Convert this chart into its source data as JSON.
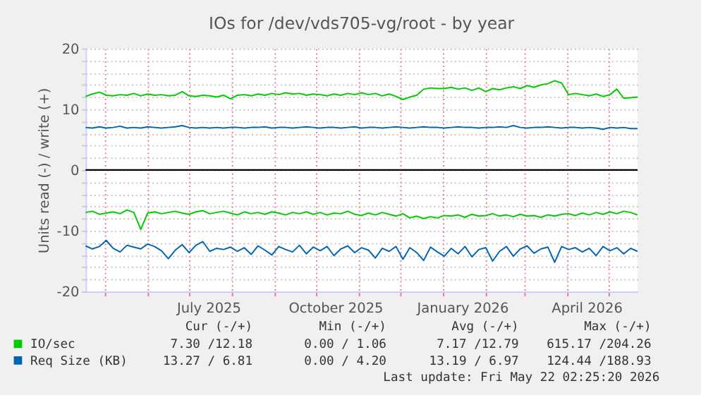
{
  "chart_data": {
    "type": "line",
    "title": "IOs for /dev/vds705-vg/root - by year",
    "ylabel": "Units read (-) / write (+)",
    "x": [
      "2025-04-17",
      "2025-04-22",
      "2025-04-27",
      "2025-05-02",
      "2025-05-07",
      "2025-05-12",
      "2025-05-17",
      "2025-05-22",
      "2025-05-27",
      "2025-06-01",
      "2025-06-06",
      "2025-06-11",
      "2025-06-16",
      "2025-06-21",
      "2025-06-26",
      "2025-07-01",
      "2025-07-06",
      "2025-07-11",
      "2025-07-16",
      "2025-07-21",
      "2025-07-26",
      "2025-07-31",
      "2025-08-05",
      "2025-08-10",
      "2025-08-15",
      "2025-08-20",
      "2025-08-25",
      "2025-08-30",
      "2025-09-04",
      "2025-09-09",
      "2025-09-14",
      "2025-09-19",
      "2025-09-24",
      "2025-09-29",
      "2025-10-04",
      "2025-10-09",
      "2025-10-14",
      "2025-10-19",
      "2025-10-24",
      "2025-10-29",
      "2025-11-03",
      "2025-11-08",
      "2025-11-13",
      "2025-11-18",
      "2025-11-23",
      "2025-11-28",
      "2025-12-03",
      "2025-12-08",
      "2025-12-13",
      "2025-12-18",
      "2025-12-23",
      "2025-12-28",
      "2026-01-02",
      "2026-01-07",
      "2026-01-12",
      "2026-01-17",
      "2026-01-22",
      "2026-01-27",
      "2026-02-01",
      "2026-02-06",
      "2026-02-11",
      "2026-02-16",
      "2026-02-21",
      "2026-02-26",
      "2026-03-03",
      "2026-03-08",
      "2026-03-13",
      "2026-03-18",
      "2026-03-23",
      "2026-03-28",
      "2026-04-02",
      "2026-04-07",
      "2026-04-12",
      "2026-04-17",
      "2026-04-22",
      "2026-04-27",
      "2026-05-02",
      "2026-05-07",
      "2026-05-12",
      "2026-05-17",
      "2026-05-22"
    ],
    "series": [
      {
        "name": "IO/sec",
        "color": "#00cc00",
        "values": [
          12.1,
          12.5,
          12.8,
          12.3,
          12.2,
          12.4,
          12.3,
          12.6,
          12.2,
          12.5,
          12.3,
          12.4,
          12.2,
          12.3,
          12.9,
          12.2,
          12.1,
          12.3,
          12.2,
          12.0,
          12.3,
          11.7,
          12.3,
          12.4,
          12.2,
          12.5,
          12.3,
          12.6,
          12.4,
          12.7,
          12.5,
          12.6,
          12.3,
          12.5,
          12.4,
          12.2,
          12.5,
          12.3,
          12.6,
          12.4,
          12.7,
          12.4,
          12.6,
          12.2,
          12.5,
          12.1,
          11.6,
          12.0,
          12.3,
          13.3,
          13.5,
          13.4,
          13.4,
          13.6,
          13.3,
          13.5,
          13.1,
          13.5,
          12.9,
          13.4,
          13.2,
          13.5,
          13.7,
          13.4,
          13.9,
          13.6,
          14.0,
          14.2,
          14.7,
          14.3,
          12.4,
          12.6,
          12.4,
          12.2,
          12.5,
          12.1,
          12.4,
          13.3,
          11.8,
          11.9,
          12.0
        ]
      },
      {
        "color": "#00cc00",
        "values": [
          -7.0,
          -6.8,
          -7.3,
          -7.1,
          -6.9,
          -7.2,
          -6.6,
          -7.0,
          -9.8,
          -7.1,
          -6.9,
          -7.2,
          -7.0,
          -6.8,
          -7.1,
          -7.3,
          -6.9,
          -6.7,
          -7.2,
          -7.0,
          -6.8,
          -7.1,
          -7.4,
          -6.9,
          -7.2,
          -7.0,
          -7.3,
          -6.9,
          -7.1,
          -7.4,
          -7.0,
          -7.2,
          -6.9,
          -7.3,
          -7.0,
          -7.4,
          -7.1,
          -7.2,
          -6.8,
          -7.3,
          -7.5,
          -7.1,
          -7.4,
          -7.0,
          -7.3,
          -7.6,
          -7.2,
          -7.9,
          -7.6,
          -8.0,
          -7.7,
          -7.9,
          -7.5,
          -7.6,
          -7.4,
          -7.8,
          -7.3,
          -7.6,
          -7.5,
          -7.2,
          -7.6,
          -7.4,
          -7.7,
          -7.3,
          -7.6,
          -7.5,
          -7.8,
          -7.4,
          -7.6,
          -7.3,
          -7.2,
          -7.5,
          -7.1,
          -7.4,
          -7.0,
          -7.3,
          -6.9,
          -7.2,
          -6.8,
          -7.0,
          -7.4
        ]
      },
      {
        "name": "Req Size (KB)",
        "color": "#0066b3",
        "values": [
          7.0,
          6.9,
          7.1,
          6.9,
          7.0,
          7.2,
          6.9,
          7.0,
          6.9,
          7.1,
          7.0,
          6.9,
          7.0,
          7.1,
          7.3,
          7.0,
          6.9,
          7.0,
          6.9,
          7.0,
          6.9,
          7.0,
          7.0,
          6.9,
          7.0,
          7.0,
          7.1,
          6.9,
          7.0,
          7.0,
          6.9,
          7.0,
          7.1,
          7.0,
          6.9,
          7.0,
          7.0,
          6.9,
          7.0,
          7.1,
          6.9,
          7.0,
          7.0,
          6.9,
          7.0,
          7.1,
          7.0,
          6.9,
          7.0,
          7.1,
          7.0,
          7.0,
          6.9,
          7.0,
          7.1,
          7.0,
          7.0,
          6.9,
          7.0,
          7.0,
          7.1,
          7.0,
          7.3,
          7.0,
          6.9,
          7.0,
          7.0,
          7.1,
          7.0,
          6.9,
          7.0,
          7.0,
          6.9,
          7.0,
          6.9,
          6.7,
          7.0,
          6.9,
          7.0,
          6.8,
          6.8
        ]
      },
      {
        "color": "#0066b3",
        "values": [
          -12.5,
          -13.0,
          -12.6,
          -11.6,
          -12.9,
          -13.5,
          -12.4,
          -12.7,
          -13.0,
          -12.2,
          -12.6,
          -13.3,
          -14.6,
          -13.2,
          -12.3,
          -13.6,
          -12.4,
          -11.8,
          -13.4,
          -12.9,
          -13.1,
          -12.7,
          -13.4,
          -12.8,
          -13.9,
          -12.5,
          -13.2,
          -14.0,
          -12.6,
          -13.1,
          -13.5,
          -12.4,
          -13.8,
          -12.7,
          -13.3,
          -12.6,
          -14.1,
          -13.0,
          -12.5,
          -13.6,
          -12.8,
          -13.2,
          -14.5,
          -12.9,
          -13.4,
          -12.6,
          -14.7,
          -12.8,
          -13.6,
          -14.9,
          -12.7,
          -13.5,
          -14.2,
          -12.9,
          -13.8,
          -12.6,
          -14.3,
          -13.1,
          -12.8,
          -15.0,
          -13.4,
          -12.6,
          -14.2,
          -13.0,
          -12.5,
          -13.7,
          -13.0,
          -12.7,
          -15.2,
          -12.6,
          -13.1,
          -12.8,
          -13.5,
          -12.9,
          -14.1,
          -12.6,
          -13.3,
          -12.8,
          -13.8,
          -12.9,
          -13.4
        ]
      }
    ],
    "xlim": [
      "2025-04-17",
      "2026-05-22"
    ],
    "xticks": [
      {
        "value": "2025-05-01",
        "label": null
      },
      {
        "value": "2025-06-01",
        "label": null
      },
      {
        "value": "2025-07-01",
        "label": null
      },
      {
        "value": "2025-07-15",
        "label": "July 2025"
      },
      {
        "value": "2025-08-01",
        "label": null
      },
      {
        "value": "2025-09-01",
        "label": null
      },
      {
        "value": "2025-10-01",
        "label": null
      },
      {
        "value": "2025-10-15",
        "label": "October 2025"
      },
      {
        "value": "2025-11-01",
        "label": null
      },
      {
        "value": "2025-12-01",
        "label": null
      },
      {
        "value": "2026-01-01",
        "label": null
      },
      {
        "value": "2026-01-15",
        "label": "January 2026"
      },
      {
        "value": "2026-02-01",
        "label": null
      },
      {
        "value": "2026-03-01",
        "label": null
      },
      {
        "value": "2026-04-01",
        "label": null
      },
      {
        "value": "2026-04-15",
        "label": "April 2026"
      },
      {
        "value": "2026-05-01",
        "label": null
      }
    ],
    "ylim": [
      -20,
      20
    ],
    "yticks": [
      -20,
      {
        "value": -18,
        "label": null
      },
      {
        "value": -16,
        "label": null
      },
      {
        "value": -14,
        "label": null
      },
      {
        "value": -12,
        "label": null
      },
      -10,
      {
        "value": -8,
        "label": null
      },
      {
        "value": -6,
        "label": null
      },
      {
        "value": -4,
        "label": null
      },
      {
        "value": -2,
        "label": null
      },
      0,
      {
        "value": 2,
        "label": null
      },
      {
        "value": 4,
        "label": null
      },
      {
        "value": 6,
        "label": null
      },
      {
        "value": 8,
        "label": null
      },
      10,
      {
        "value": 12,
        "label": null
      },
      {
        "value": 14,
        "label": null
      },
      {
        "value": 16,
        "label": null
      },
      {
        "value": 18,
        "label": null
      },
      20
    ],
    "grid": true,
    "legend": "bottom",
    "ref_lines": [
      {
        "axis": "y",
        "value": 0,
        "color": "#000000"
      }
    ],
    "annotations": [
      "Cur (-/+)",
      "Min (-/+)",
      "Avg (-/+)",
      "Max (-/+)",
      "7.30 /12.18",
      "0.00 / 1.06",
      "7.17 /12.79",
      "615.17 /204.26",
      "13.27 / 6.81",
      "0.00 / 4.20",
      "13.19 / 6.97",
      "124.44 /188.93",
      "Last update: Fri May 22 02:25:20 2026"
    ]
  }
}
